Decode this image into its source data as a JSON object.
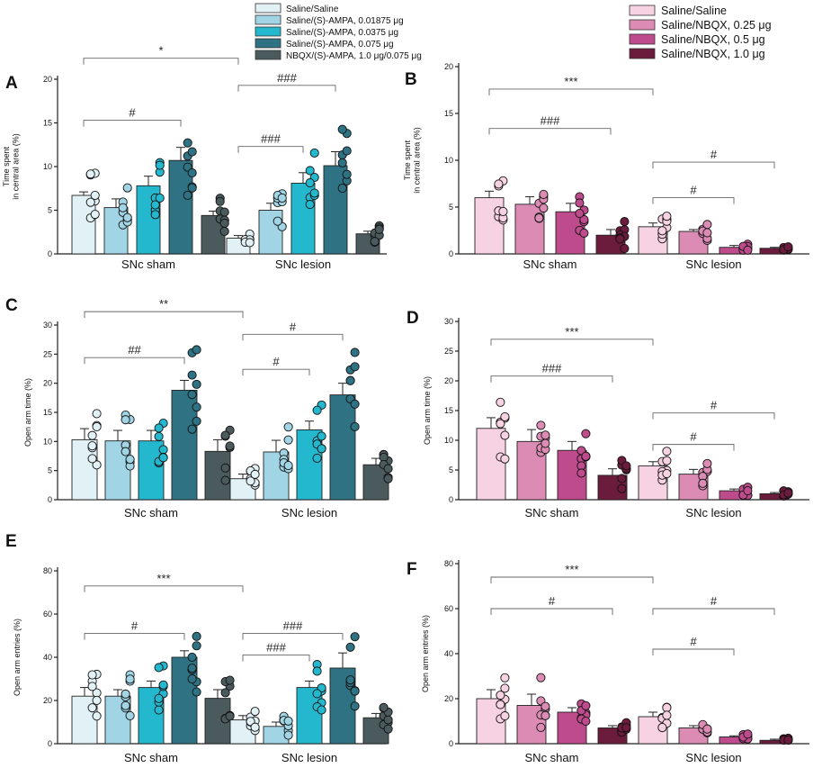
{
  "legend_left": {
    "entries": [
      {
        "label": "Saline/Saline",
        "color": "#e2f1f6"
      },
      {
        "label": "Saline/(S)-AMPA, 0.01875 μg",
        "color": "#a1d4e4"
      },
      {
        "label": "Saline/(S)-AMPA, 0.0375 μg",
        "color": "#24b8cf"
      },
      {
        "label": "Saline/(S)-AMPA, 0.075 μg",
        "color": "#2e7283"
      },
      {
        "label": "NBQX/(S)-AMPA, 1.0 μg/0.075 μg",
        "color": "#4b5a5d"
      }
    ]
  },
  "legend_right": {
    "entries": [
      {
        "label": "Saline/Saline",
        "color": "#f6d2e2"
      },
      {
        "label": "Saline/NBQX, 0.25 μg",
        "color": "#dc8cb4"
      },
      {
        "label": "Saline/NBQX, 0.5 μg",
        "color": "#be4b8c"
      },
      {
        "label": "Saline/NBQX, 1.0 μg",
        "color": "#6b1b3b"
      }
    ]
  },
  "chart_data": [
    {
      "panel": "A",
      "type": "bar",
      "ylabel_line1": "Time  spent",
      "ylabel_line2": "in central  area (%)",
      "ylim": [
        0,
        20
      ],
      "yticks": [
        0,
        5,
        10,
        15,
        20
      ],
      "groups": [
        "SNc sham",
        "SNc lesion"
      ],
      "series": [
        {
          "name": "Saline/Saline",
          "values": [
            6.7,
            1.8
          ],
          "errors": [
            0.4,
            0.3
          ]
        },
        {
          "name": "Saline/(S)-AMPA, 0.01875 μg",
          "values": [
            5.3,
            5.0
          ],
          "errors": [
            1.0,
            0.8
          ]
        },
        {
          "name": "Saline/(S)-AMPA, 0.0375 μg",
          "values": [
            7.8,
            8.1
          ],
          "errors": [
            1.1,
            1.2
          ]
        },
        {
          "name": "Saline/(S)-AMPA, 0.075 μg",
          "values": [
            10.7,
            10.1
          ],
          "errors": [
            1.5,
            1.6
          ]
        },
        {
          "name": "NBQX/(S)-AMPA, 1.0 μg/0.075 μg",
          "values": [
            4.4,
            2.3
          ],
          "errors": [
            0.5,
            0.3
          ]
        }
      ],
      "annotations": [
        {
          "text": "*",
          "from": [
            0,
            0
          ],
          "to": [
            1,
            0
          ],
          "y": 22.4
        },
        {
          "text": "#",
          "from": [
            0,
            0
          ],
          "to": [
            0,
            3
          ],
          "y": 15.3
        },
        {
          "text": "###",
          "from": [
            1,
            0
          ],
          "to": [
            1,
            3
          ],
          "y": 19.3
        },
        {
          "text": "###",
          "from": [
            1,
            0
          ],
          "to": [
            1,
            2
          ],
          "y": 12.3
        }
      ]
    },
    {
      "panel": "B",
      "type": "bar",
      "ylabel_line1": "Time  spent",
      "ylabel_line2": "in central  area (%)",
      "ylim": [
        0,
        20
      ],
      "yticks": [
        0,
        5,
        10,
        15,
        20
      ],
      "groups": [
        "SNc sham",
        "SNc lesion"
      ],
      "series": [
        {
          "name": "Saline/Saline",
          "values": [
            6.0,
            2.9
          ],
          "errors": [
            0.7,
            0.4
          ]
        },
        {
          "name": "Saline/NBQX, 0.25 μg",
          "values": [
            5.3,
            2.4
          ],
          "errors": [
            0.8,
            0.2
          ]
        },
        {
          "name": "Saline/NBQX, 0.5 μg",
          "values": [
            4.5,
            0.7
          ],
          "errors": [
            0.9,
            0.2
          ]
        },
        {
          "name": "Saline/NBQX, 1.0 μg",
          "values": [
            2.0,
            0.6
          ],
          "errors": [
            0.6,
            0.1
          ]
        }
      ],
      "annotations": [
        {
          "text": "***",
          "from": [
            0,
            0
          ],
          "to": [
            1,
            0
          ],
          "y": 17.6
        },
        {
          "text": "###",
          "from": [
            0,
            0
          ],
          "to": [
            0,
            3
          ],
          "y": 13.4
        },
        {
          "text": "#",
          "from": [
            1,
            0
          ],
          "to": [
            1,
            3
          ],
          "y": 9.8
        },
        {
          "text": "#",
          "from": [
            1,
            0
          ],
          "to": [
            1,
            2
          ],
          "y": 6.0
        }
      ]
    },
    {
      "panel": "C",
      "type": "bar",
      "ylabel_line1": "Open arm time (%)",
      "ylabel_line2": "",
      "ylim": [
        0,
        30
      ],
      "yticks": [
        0,
        5,
        10,
        15,
        20,
        25,
        30
      ],
      "groups": [
        "SNc sham",
        "SNc lesion"
      ],
      "series": [
        {
          "name": "Saline/Saline",
          "values": [
            10.3,
            3.6
          ],
          "errors": [
            1.9,
            0.8
          ]
        },
        {
          "name": "Saline/(S)-AMPA, 0.01875 μg",
          "values": [
            10.1,
            8.2
          ],
          "errors": [
            1.8,
            2.0
          ]
        },
        {
          "name": "Saline/(S)-AMPA, 0.0375 μg",
          "values": [
            10.1,
            12.0
          ],
          "errors": [
            1.8,
            1.5
          ]
        },
        {
          "name": "Saline/(S)-AMPA, 0.075 μg",
          "values": [
            18.8,
            18.0
          ],
          "errors": [
            1.7,
            2.0
          ]
        },
        {
          "name": "NBQX/(S)-AMPA, 1.0 μg/0.075 μg",
          "values": [
            8.3,
            6.0
          ],
          "errors": [
            2.0,
            1.1
          ]
        }
      ],
      "annotations": [
        {
          "text": "**",
          "from": [
            0,
            0
          ],
          "to": [
            1,
            0
          ],
          "y": 32.3
        },
        {
          "text": "##",
          "from": [
            0,
            0
          ],
          "to": [
            0,
            3
          ],
          "y": 24.4
        },
        {
          "text": "#",
          "from": [
            1,
            0
          ],
          "to": [
            1,
            3
          ],
          "y": 28.4
        },
        {
          "text": "#",
          "from": [
            1,
            0
          ],
          "to": [
            1,
            2
          ],
          "y": 22.4
        }
      ]
    },
    {
      "panel": "D",
      "type": "bar",
      "ylabel_line1": "Open arm time (%)",
      "ylabel_line2": "",
      "ylim": [
        0,
        30
      ],
      "yticks": [
        0,
        5,
        10,
        15,
        20,
        25,
        30
      ],
      "groups": [
        "SNc sham",
        "SNc lesion"
      ],
      "series": [
        {
          "name": "Saline/Saline",
          "values": [
            12.0,
            5.7
          ],
          "errors": [
            1.8,
            0.7
          ]
        },
        {
          "name": "Saline/NBQX, 0.25 μg",
          "values": [
            9.8,
            4.3
          ],
          "errors": [
            2.0,
            0.8
          ]
        },
        {
          "name": "Saline/NBQX, 0.5 μg",
          "values": [
            8.3,
            1.5
          ],
          "errors": [
            1.5,
            0.3
          ]
        },
        {
          "name": "Saline/NBQX, 1.0 μg",
          "values": [
            4.1,
            1.0
          ],
          "errors": [
            1.1,
            0.2
          ]
        }
      ],
      "annotations": [
        {
          "text": "***",
          "from": [
            0,
            0
          ],
          "to": [
            1,
            0
          ],
          "y": 27.0
        },
        {
          "text": "###",
          "from": [
            0,
            0
          ],
          "to": [
            0,
            3
          ],
          "y": 20.8
        },
        {
          "text": "#",
          "from": [
            1,
            0
          ],
          "to": [
            1,
            3
          ],
          "y": 14.6
        },
        {
          "text": "#",
          "from": [
            1,
            0
          ],
          "to": [
            1,
            2
          ],
          "y": 9.3
        }
      ]
    },
    {
      "panel": "E",
      "type": "bar",
      "ylabel_line1": "Open arm entries (%)",
      "ylabel_line2": "",
      "ylim": [
        0,
        80
      ],
      "yticks": [
        0,
        20,
        40,
        60,
        80
      ],
      "groups": [
        "SNc sham",
        "SNc lesion"
      ],
      "series": [
        {
          "name": "Saline/Saline",
          "values": [
            22,
            11
          ],
          "errors": [
            4,
            2
          ]
        },
        {
          "name": "Saline/(S)-AMPA, 0.01875 μg",
          "values": [
            22,
            8
          ],
          "errors": [
            3,
            2
          ]
        },
        {
          "name": "Saline/(S)-AMPA, 0.0375 μg",
          "values": [
            26,
            26
          ],
          "errors": [
            3,
            3
          ]
        },
        {
          "name": "Saline/(S)-AMPA, 0.075 μg",
          "values": [
            40,
            35
          ],
          "errors": [
            3,
            7
          ]
        },
        {
          "name": "NBQX/(S)-AMPA, 1.0 μg/0.075 μg",
          "values": [
            21,
            12
          ],
          "errors": [
            4,
            2
          ]
        }
      ],
      "annotations": [
        {
          "text": "***",
          "from": [
            0,
            0
          ],
          "to": [
            1,
            0
          ],
          "y": 73
        },
        {
          "text": "#",
          "from": [
            0,
            0
          ],
          "to": [
            0,
            3
          ],
          "y": 51
        },
        {
          "text": "###",
          "from": [
            1,
            0
          ],
          "to": [
            1,
            3
          ],
          "y": 51
        },
        {
          "text": "###",
          "from": [
            1,
            0
          ],
          "to": [
            1,
            2
          ],
          "y": 41
        }
      ]
    },
    {
      "panel": "F",
      "type": "bar",
      "ylabel_line1": "Open arm entries (%)",
      "ylabel_line2": "",
      "ylim": [
        0,
        80
      ],
      "yticks": [
        0,
        20,
        40,
        60,
        80
      ],
      "groups": [
        "SNc sham",
        "SNc lesion"
      ],
      "series": [
        {
          "name": "Saline/Saline",
          "values": [
            20,
            12
          ],
          "errors": [
            4,
            2
          ]
        },
        {
          "name": "Saline/NBQX, 0.25 μg",
          "values": [
            17,
            7
          ],
          "errors": [
            5,
            1
          ]
        },
        {
          "name": "Saline/NBQX, 0.5 μg",
          "values": [
            14,
            3
          ],
          "errors": [
            2,
            0.5
          ]
        },
        {
          "name": "Saline/NBQX, 1.0 μg",
          "values": [
            7,
            1.5
          ],
          "errors": [
            1,
            0.5
          ]
        }
      ],
      "annotations": [
        {
          "text": "***",
          "from": [
            0,
            0
          ],
          "to": [
            1,
            0
          ],
          "y": 74
        },
        {
          "text": "#",
          "from": [
            0,
            0
          ],
          "to": [
            0,
            3
          ],
          "y": 60
        },
        {
          "text": "#",
          "from": [
            1,
            0
          ],
          "to": [
            1,
            3
          ],
          "y": 60
        },
        {
          "text": "#",
          "from": [
            1,
            0
          ],
          "to": [
            1,
            2
          ],
          "y": 42
        }
      ]
    }
  ]
}
